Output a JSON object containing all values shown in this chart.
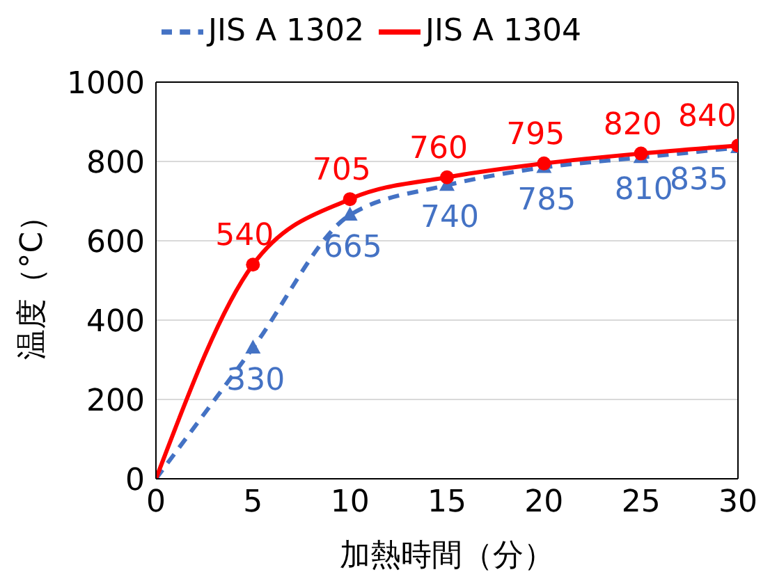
{
  "chart_data": {
    "type": "line",
    "xlabel": "加熱時間（分）",
    "ylabel": "温度（°C）",
    "x": [
      0,
      5,
      10,
      15,
      20,
      25,
      30
    ],
    "series": [
      {
        "name": "JIS A 1302",
        "color": "#4472c4",
        "values": [
          0,
          330,
          665,
          740,
          785,
          810,
          835
        ],
        "value_labels": [
          null,
          "330",
          "665",
          "740",
          "785",
          "810",
          "835"
        ],
        "marker": "triangle",
        "line_style": "dashed"
      },
      {
        "name": "JIS A 1304",
        "color": "#ff0000",
        "values": [
          0,
          540,
          705,
          760,
          795,
          820,
          840
        ],
        "value_labels": [
          null,
          "540",
          "705",
          "760",
          "795",
          "820",
          "840"
        ],
        "marker": "circle",
        "line_style": "solid"
      }
    ],
    "xlim": [
      0,
      30
    ],
    "xticks": [
      0,
      5,
      10,
      15,
      20,
      25,
      30
    ],
    "ylim": [
      0,
      1000
    ],
    "yticks": [
      0,
      200,
      400,
      600,
      800,
      1000
    ],
    "grid": "y",
    "legend": "top"
  }
}
